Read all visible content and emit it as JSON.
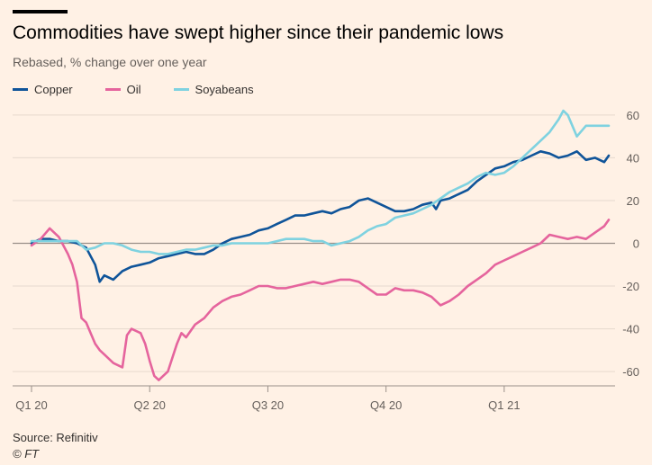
{
  "title": "Commodities have swept higher since their pandemic lows",
  "subtitle": "Rebased, % change over one year",
  "source": "Source: Refinitiv",
  "copyright": "© FT",
  "chart_data": {
    "type": "line",
    "ylim": [
      -65,
      65
    ],
    "y_ticks": [
      60,
      40,
      20,
      0,
      -20,
      -40,
      -60
    ],
    "x_range": [
      0,
      64
    ],
    "x_ticks": [
      {
        "label": "Q1 20",
        "x": 0
      },
      {
        "label": "Q2 20",
        "x": 13
      },
      {
        "label": "Q3 20",
        "x": 26
      },
      {
        "label": "Q4 20",
        "x": 39
      },
      {
        "label": "Q1 21",
        "x": 52
      }
    ],
    "grid": true,
    "legend_position": "top-left",
    "series": [
      {
        "name": "Copper",
        "color": "#0f5499",
        "points": [
          [
            0,
            0
          ],
          [
            1,
            2
          ],
          [
            2,
            2
          ],
          [
            3,
            1
          ],
          [
            4,
            1
          ],
          [
            5,
            0
          ],
          [
            6,
            -2
          ],
          [
            7,
            -10
          ],
          [
            7.5,
            -18
          ],
          [
            8,
            -15
          ],
          [
            9,
            -17
          ],
          [
            10,
            -13
          ],
          [
            11,
            -11
          ],
          [
            12,
            -10
          ],
          [
            13,
            -9
          ],
          [
            14,
            -7
          ],
          [
            15,
            -6
          ],
          [
            16,
            -5
          ],
          [
            17,
            -4
          ],
          [
            18,
            -5
          ],
          [
            19,
            -5
          ],
          [
            20,
            -3
          ],
          [
            21,
            0
          ],
          [
            22,
            2
          ],
          [
            23,
            3
          ],
          [
            24,
            4
          ],
          [
            25,
            6
          ],
          [
            26,
            7
          ],
          [
            27,
            9
          ],
          [
            28,
            11
          ],
          [
            29,
            13
          ],
          [
            30,
            13
          ],
          [
            31,
            14
          ],
          [
            32,
            15
          ],
          [
            33,
            14
          ],
          [
            34,
            16
          ],
          [
            35,
            17
          ],
          [
            36,
            20
          ],
          [
            37,
            21
          ],
          [
            38,
            19
          ],
          [
            39,
            17
          ],
          [
            40,
            15
          ],
          [
            41,
            15
          ],
          [
            42,
            16
          ],
          [
            43,
            18
          ],
          [
            44,
            19
          ],
          [
            44.5,
            16
          ],
          [
            45,
            20
          ],
          [
            46,
            21
          ],
          [
            47,
            23
          ],
          [
            48,
            25
          ],
          [
            49,
            29
          ],
          [
            50,
            32
          ],
          [
            51,
            35
          ],
          [
            52,
            36
          ],
          [
            53,
            38
          ],
          [
            54,
            39
          ],
          [
            55,
            41
          ],
          [
            56,
            43
          ],
          [
            57,
            42
          ],
          [
            58,
            40
          ],
          [
            59,
            41
          ],
          [
            60,
            43
          ],
          [
            61,
            39
          ],
          [
            62,
            40
          ],
          [
            63,
            38
          ],
          [
            63.5,
            41
          ]
        ]
      },
      {
        "name": "Oil",
        "color": "#e5649d",
        "points": [
          [
            0,
            -1
          ],
          [
            1,
            2
          ],
          [
            2,
            7
          ],
          [
            3,
            3
          ],
          [
            4,
            -5
          ],
          [
            4.5,
            -10
          ],
          [
            5,
            -18
          ],
          [
            5.5,
            -35
          ],
          [
            6,
            -37
          ],
          [
            6.5,
            -42
          ],
          [
            7,
            -47
          ],
          [
            7.5,
            -50
          ],
          [
            8,
            -52
          ],
          [
            9,
            -56
          ],
          [
            10,
            -58
          ],
          [
            10.5,
            -43
          ],
          [
            11,
            -40
          ],
          [
            12,
            -42
          ],
          [
            12.5,
            -47
          ],
          [
            13,
            -55
          ],
          [
            13.5,
            -62
          ],
          [
            14,
            -64
          ],
          [
            15,
            -60
          ],
          [
            16,
            -47
          ],
          [
            16.5,
            -42
          ],
          [
            17,
            -44
          ],
          [
            18,
            -38
          ],
          [
            19,
            -35
          ],
          [
            20,
            -30
          ],
          [
            21,
            -27
          ],
          [
            22,
            -25
          ],
          [
            23,
            -24
          ],
          [
            24,
            -22
          ],
          [
            25,
            -20
          ],
          [
            26,
            -20
          ],
          [
            27,
            -21
          ],
          [
            28,
            -21
          ],
          [
            29,
            -20
          ],
          [
            30,
            -19
          ],
          [
            31,
            -18
          ],
          [
            32,
            -19
          ],
          [
            33,
            -18
          ],
          [
            34,
            -17
          ],
          [
            35,
            -17
          ],
          [
            36,
            -18
          ],
          [
            37,
            -21
          ],
          [
            38,
            -24
          ],
          [
            39,
            -24
          ],
          [
            40,
            -21
          ],
          [
            41,
            -22
          ],
          [
            42,
            -22
          ],
          [
            43,
            -23
          ],
          [
            44,
            -25
          ],
          [
            45,
            -29
          ],
          [
            46,
            -27
          ],
          [
            47,
            -24
          ],
          [
            48,
            -20
          ],
          [
            49,
            -17
          ],
          [
            50,
            -14
          ],
          [
            51,
            -10
          ],
          [
            52,
            -8
          ],
          [
            53,
            -6
          ],
          [
            54,
            -4
          ],
          [
            55,
            -2
          ],
          [
            56,
            0
          ],
          [
            57,
            4
          ],
          [
            58,
            3
          ],
          [
            59,
            2
          ],
          [
            60,
            3
          ],
          [
            61,
            2
          ],
          [
            62,
            5
          ],
          [
            63,
            8
          ],
          [
            63.5,
            11
          ]
        ]
      },
      {
        "name": "Soyabeans",
        "color": "#7fd2e0",
        "points": [
          [
            0,
            1
          ],
          [
            1,
            1
          ],
          [
            2,
            1
          ],
          [
            3,
            1
          ],
          [
            4,
            1
          ],
          [
            5,
            1
          ],
          [
            6,
            -3
          ],
          [
            7,
            -2
          ],
          [
            8,
            0
          ],
          [
            9,
            0
          ],
          [
            10,
            -1
          ],
          [
            11,
            -3
          ],
          [
            12,
            -4
          ],
          [
            13,
            -4
          ],
          [
            14,
            -5
          ],
          [
            15,
            -5
          ],
          [
            16,
            -4
          ],
          [
            17,
            -3
          ],
          [
            18,
            -3
          ],
          [
            19,
            -2
          ],
          [
            20,
            -1
          ],
          [
            21,
            -1
          ],
          [
            22,
            0
          ],
          [
            23,
            0
          ],
          [
            24,
            0
          ],
          [
            25,
            0
          ],
          [
            26,
            0
          ],
          [
            27,
            1
          ],
          [
            28,
            2
          ],
          [
            29,
            2
          ],
          [
            30,
            2
          ],
          [
            31,
            1
          ],
          [
            32,
            1
          ],
          [
            33,
            -1
          ],
          [
            34,
            0
          ],
          [
            35,
            1
          ],
          [
            36,
            3
          ],
          [
            37,
            6
          ],
          [
            38,
            8
          ],
          [
            39,
            9
          ],
          [
            40,
            12
          ],
          [
            41,
            13
          ],
          [
            42,
            14
          ],
          [
            43,
            16
          ],
          [
            44,
            18
          ],
          [
            45,
            21
          ],
          [
            46,
            24
          ],
          [
            47,
            26
          ],
          [
            48,
            28
          ],
          [
            49,
            31
          ],
          [
            50,
            33
          ],
          [
            51,
            32
          ],
          [
            52,
            33
          ],
          [
            53,
            36
          ],
          [
            54,
            40
          ],
          [
            55,
            44
          ],
          [
            56,
            48
          ],
          [
            57,
            52
          ],
          [
            58,
            58
          ],
          [
            58.5,
            62
          ],
          [
            59,
            60
          ],
          [
            60,
            50
          ],
          [
            61,
            55
          ],
          [
            62,
            55
          ],
          [
            63,
            55
          ],
          [
            63.5,
            55
          ]
        ]
      }
    ]
  }
}
